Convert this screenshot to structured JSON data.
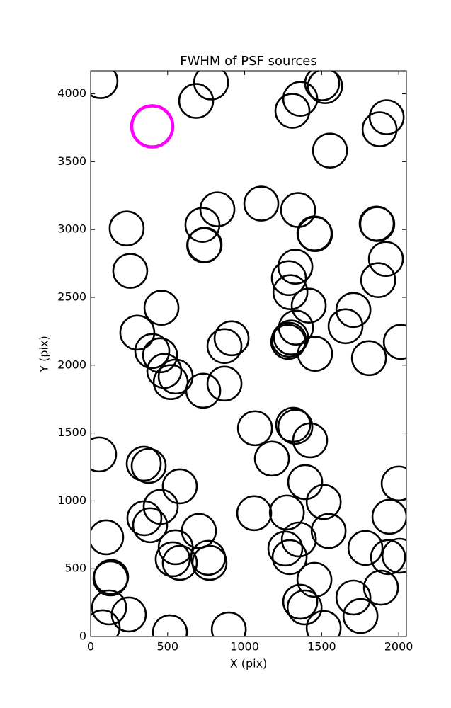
{
  "chart_data": {
    "type": "scatter",
    "title": "FWHM of PSF sources",
    "xlabel": "X (pix)",
    "ylabel": "Y (pix)",
    "xlim": [
      0,
      2050
    ],
    "ylim": [
      0,
      4170
    ],
    "xticks": [
      0,
      500,
      1000,
      1500,
      2000
    ],
    "yticks": [
      0,
      500,
      1000,
      1500,
      2000,
      2500,
      3000,
      3500,
      4000
    ],
    "marker": "open-circle",
    "series": [
      {
        "color": "#000000",
        "x": [
          64,
          685,
          782,
          1361,
          1310,
          1522,
          1503,
          1922,
          1876,
          1554,
          1108,
          823,
          726,
          740,
          737,
          1347,
          1453,
          1457,
          234,
          257,
          1857,
          1861,
          1917,
          1867,
          1329,
          1287,
          1297,
          1416,
          1333,
          1287,
          1283,
          1301,
          1457,
          1706,
          1655,
          1807,
          2014,
          460,
          303,
          400,
          451,
          478,
          552,
          520,
          731,
          915,
          869,
          869,
          1067,
          1177,
          1315,
          1329,
          1425,
          1393,
          1513,
          1062,
          1274,
          1352,
          1545,
          1264,
          1292,
          1453,
          1361,
          1389,
          1513,
          1706,
          1752,
          1784,
          1931,
          1885,
          1940,
          2000,
          2005,
          55,
          345,
          377,
          579,
          455,
          349,
          386,
          703,
          101,
          552,
          533,
          579,
          763,
          772,
          133,
          129,
          120,
          248,
          78,
          515,
          897
        ],
        "y": [
          4094,
          3948,
          4084,
          3963,
          3875,
          4057,
          4078,
          3828,
          3739,
          3582,
          3191,
          3149,
          3034,
          2888,
          2883,
          3144,
          2971,
          2966,
          3008,
          2695,
          3044,
          3040,
          2783,
          2627,
          2726,
          2642,
          2538,
          2439,
          2277,
          2188,
          2172,
          2204,
          2084,
          2407,
          2287,
          2052,
          2172,
          2423,
          2240,
          2104,
          2073,
          1958,
          1916,
          1875,
          1812,
          2198,
          2141,
          1864,
          1535,
          1311,
          1561,
          1546,
          1446,
          1138,
          992,
          909,
          914,
          715,
          778,
          648,
          585,
          418,
          256,
          214,
          63,
          287,
          151,
          653,
          585,
          360,
          883,
          1128,
          595,
          1342,
          1274,
          1258,
          1107,
          956,
          872,
          820,
          778,
          731,
          658,
          569,
          543,
          580,
          543,
          439,
          428,
          214,
          162,
          68,
          31,
          52
        ]
      },
      {
        "color": "#ff00ff",
        "x": [
          400
        ],
        "y": [
          3760
        ]
      }
    ]
  }
}
